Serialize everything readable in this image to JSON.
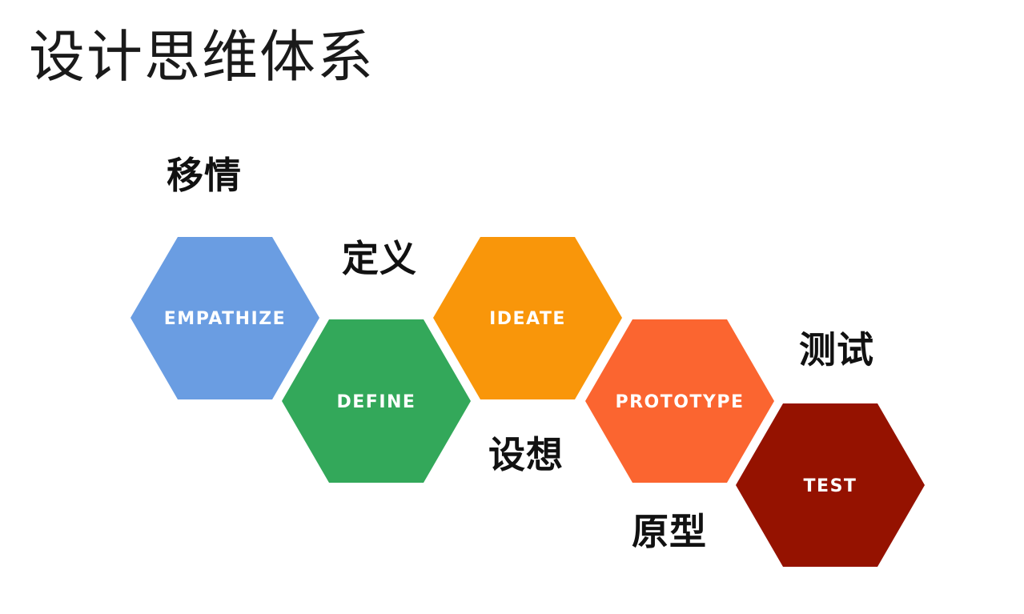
{
  "title": "设计思维体系",
  "colors": {
    "empathize": "#6a9de2",
    "define": "#33a85a",
    "ideate": "#f9960a",
    "prototype": "#fb6530",
    "test": "#951200"
  },
  "stages": [
    {
      "key": "empathize",
      "label": "EMPATHIZE",
      "chinese": "移情"
    },
    {
      "key": "define",
      "label": "DEFINE",
      "chinese": "定义"
    },
    {
      "key": "ideate",
      "label": "IDEATE",
      "chinese": "设想"
    },
    {
      "key": "prototype",
      "label": "PROTOTYPE",
      "chinese": "原型"
    },
    {
      "key": "test",
      "label": "TEST",
      "chinese": "测试"
    }
  ]
}
